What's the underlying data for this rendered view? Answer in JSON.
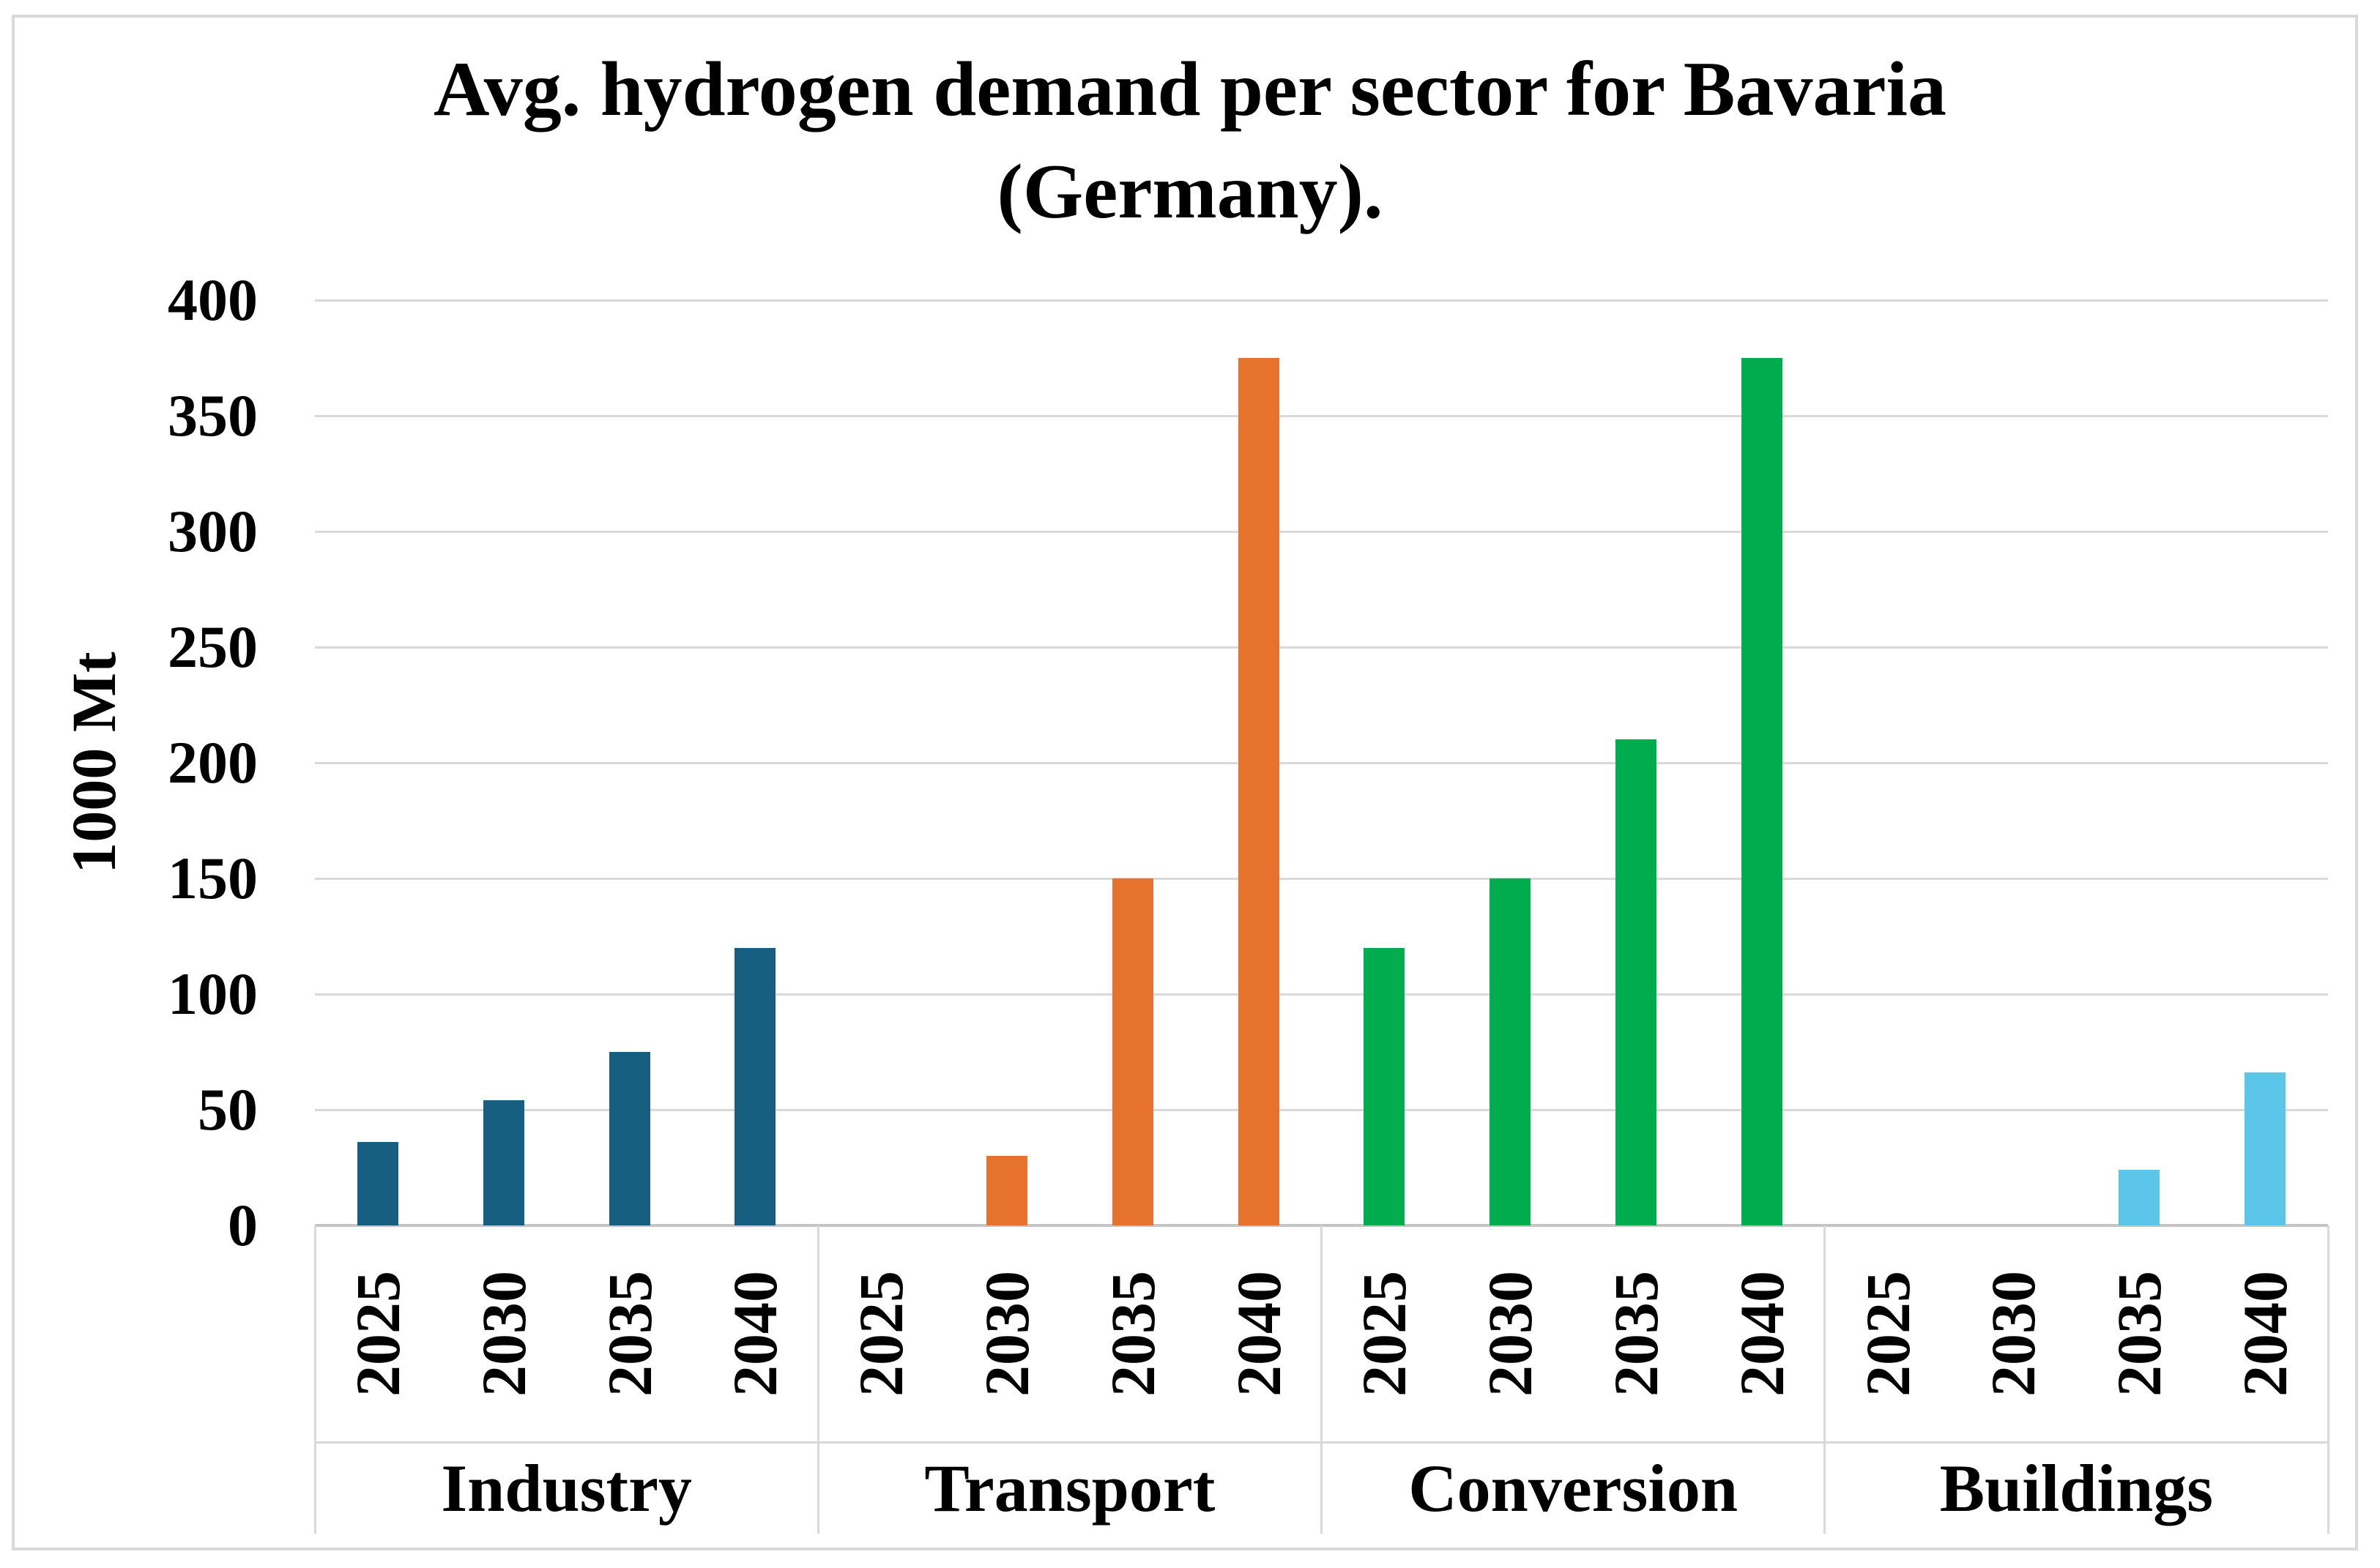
{
  "title": {
    "line1": "Avg. hydrogen demand per sector for Bavaria",
    "line2": "(Germany)."
  },
  "y_axis": {
    "title": "1000 Mt"
  },
  "chart_data": {
    "type": "bar",
    "title": "Avg. hydrogen demand per sector for Bavaria (Germany).",
    "xlabel": "",
    "ylabel": "1000 Mt",
    "ylim": [
      0,
      400
    ],
    "yticks": [
      0,
      50,
      100,
      150,
      200,
      250,
      300,
      350,
      400
    ],
    "grid": true,
    "legend_position": "none",
    "categories": [
      "2025",
      "2030",
      "2035",
      "2040"
    ],
    "groups": [
      {
        "name": "Industry",
        "color": "#175F80",
        "values": [
          36,
          54,
          75,
          120
        ]
      },
      {
        "name": "Transport",
        "color": "#E7722E",
        "values": [
          0,
          30,
          150,
          375
        ]
      },
      {
        "name": "Conversion",
        "color": "#00AC4E",
        "values": [
          120,
          150,
          210,
          375
        ]
      },
      {
        "name": "Buildings",
        "color": "#5BC6EA",
        "values": [
          0,
          0,
          24,
          66
        ]
      }
    ]
  },
  "style_colors": {
    "gridline": "#D9D9D9",
    "axis_line": "#C4C4C4",
    "table_border": "#D9D9D9",
    "figure_border": "#D9D9D9",
    "text": "#000000",
    "background": "#FFFFFF"
  }
}
